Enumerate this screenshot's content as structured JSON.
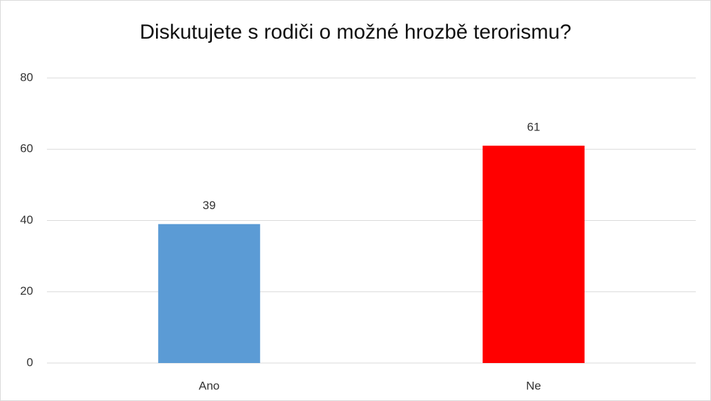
{
  "chart_data": {
    "type": "bar",
    "title": "Diskutujete s rodiči o možné hrozbě terorismu?",
    "categories": [
      "Ano",
      "Ne"
    ],
    "values": [
      39,
      61
    ],
    "colors": [
      "#5b9bd5",
      "#ff0000"
    ],
    "ylim": [
      0,
      80
    ],
    "yticks": [
      0,
      20,
      40,
      60,
      80
    ],
    "grid": true
  }
}
